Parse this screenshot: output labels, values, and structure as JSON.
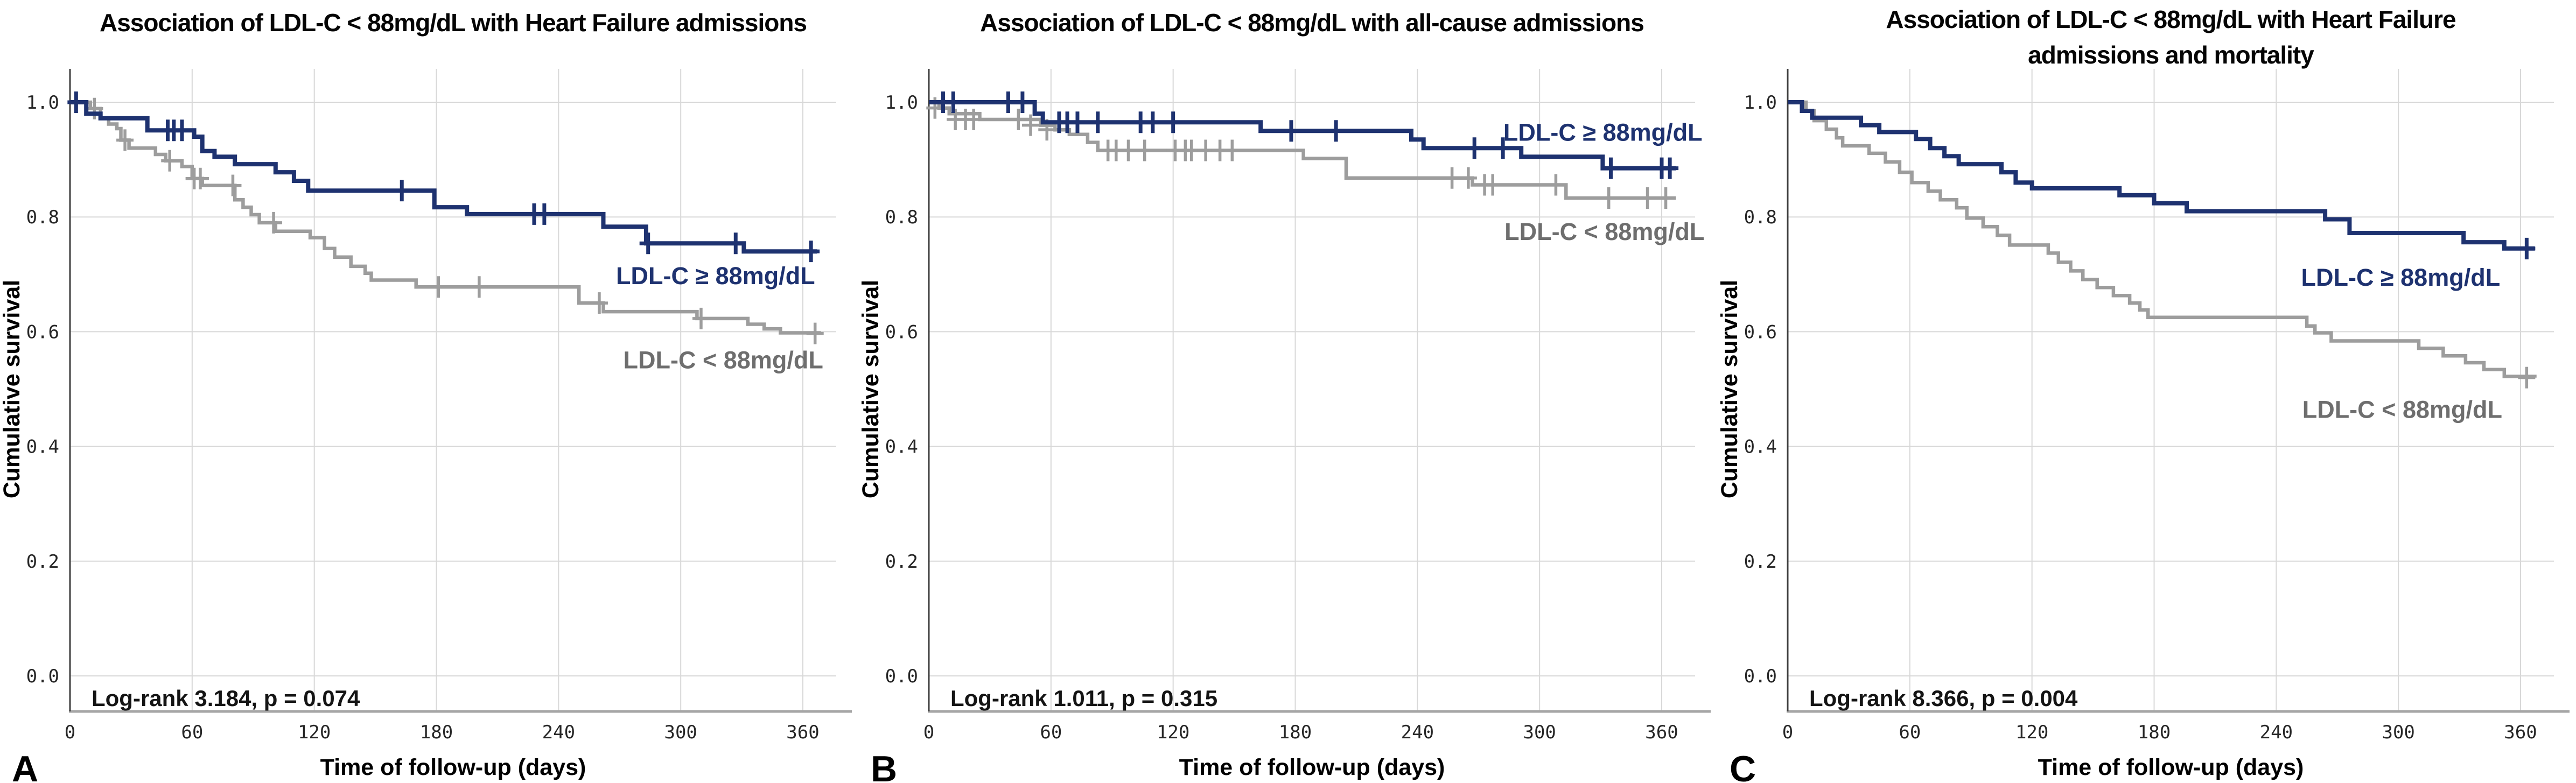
{
  "figure": {
    "background": "#ffffff",
    "shared_y_axis_label": "Cumulative survival",
    "shared_x_axis_label": "Time of follow-up (days)",
    "panel_letters": [
      "A",
      "B",
      "C"
    ],
    "colors": {
      "ldl_high_curve": "#1e3270",
      "ldl_low_curve": "#9d9d9d",
      "ldl_low_label": "#6e6e6e",
      "gridline": "#d8d8d8",
      "y_axis_line": "#3f3f3f",
      "x_axis_line": "#a6a6a6"
    }
  },
  "chart_data": [
    {
      "type": "line",
      "km_step": true,
      "panel_label": "A",
      "title": "Association of LDL-C < 88mg/dL with Heart Failure admissions",
      "title_lines": [
        "Association of LDL-C < 88mg/dL with Heart Failure admissions"
      ],
      "xlabel": "Time of follow-up (days)",
      "ylabel": "Cumulative survival",
      "annotation": "Log-rank 3.184, p = 0.074",
      "x_ticks": [
        0,
        60,
        120,
        180,
        240,
        300,
        360
      ],
      "y_ticks": [
        1.0,
        0.8,
        0.6,
        0.4,
        0.2,
        0.0
      ],
      "xlim": [
        0,
        375
      ],
      "ylim": [
        0.0,
        1.0
      ],
      "grid": true,
      "legend_position": "inline-right",
      "series": [
        {
          "name": "LDL-C ≥ 88mg/dL",
          "color": "#1e3270",
          "label_color": "#1e3270",
          "stroke_width": 8,
          "points": [
            [
              0,
              1.0
            ],
            [
              8,
              0.98
            ],
            [
              15,
              0.972
            ],
            [
              38,
              0.951
            ],
            [
              61,
              0.94
            ],
            [
              65,
              0.915
            ],
            [
              71,
              0.905
            ],
            [
              81,
              0.892
            ],
            [
              101,
              0.878
            ],
            [
              110,
              0.863
            ],
            [
              117,
              0.846
            ],
            [
              179,
              0.817
            ],
            [
              195,
              0.805
            ],
            [
              262,
              0.783
            ],
            [
              283,
              0.754
            ],
            [
              331,
              0.74
            ],
            [
              367,
              0.74
            ]
          ],
          "censors": [
            [
              3,
              1.0
            ],
            [
              48,
              0.951
            ],
            [
              51,
              0.951
            ],
            [
              55,
              0.951
            ],
            [
              163,
              0.846
            ],
            [
              228,
              0.805
            ],
            [
              233,
              0.805
            ],
            [
              284,
              0.754
            ],
            [
              327,
              0.754
            ],
            [
              364,
              0.74
            ]
          ],
          "label": {
            "x": 366,
            "y": 0.698,
            "anchor": "end"
          }
        },
        {
          "name": "LDL-C < 88mg/dL",
          "color": "#9d9d9d",
          "label_color": "#6e6e6e",
          "stroke_width": 6.5,
          "points": [
            [
              0,
              1.0
            ],
            [
              10,
              0.989
            ],
            [
              15,
              0.972
            ],
            [
              19,
              0.962
            ],
            [
              23,
              0.954
            ],
            [
              25,
              0.934
            ],
            [
              29,
              0.92
            ],
            [
              42,
              0.909
            ],
            [
              47,
              0.898
            ],
            [
              55,
              0.888
            ],
            [
              60,
              0.867
            ],
            [
              65,
              0.855
            ],
            [
              81,
              0.83
            ],
            [
              85,
              0.817
            ],
            [
              89,
              0.804
            ],
            [
              93,
              0.79
            ],
            [
              101,
              0.775
            ],
            [
              118,
              0.764
            ],
            [
              125,
              0.745
            ],
            [
              130,
              0.73
            ],
            [
              138,
              0.714
            ],
            [
              145,
              0.702
            ],
            [
              148,
              0.69
            ],
            [
              170,
              0.678
            ],
            [
              250,
              0.65
            ],
            [
              262,
              0.635
            ],
            [
              308,
              0.623
            ],
            [
              333,
              0.613
            ],
            [
              341,
              0.605
            ],
            [
              349,
              0.598
            ],
            [
              368,
              0.597
            ]
          ],
          "censors": [
            [
              12,
              0.989
            ],
            [
              27,
              0.934
            ],
            [
              49,
              0.898
            ],
            [
              61,
              0.867
            ],
            [
              64,
              0.867
            ],
            [
              80,
              0.855
            ],
            [
              100,
              0.79
            ],
            [
              181,
              0.678
            ],
            [
              201,
              0.678
            ],
            [
              260,
              0.65
            ],
            [
              310,
              0.623
            ],
            [
              366,
              0.597
            ]
          ],
          "label": {
            "x": 370,
            "y": 0.551,
            "anchor": "end"
          }
        }
      ]
    },
    {
      "type": "line",
      "km_step": true,
      "panel_label": "B",
      "title": "Association of LDL-C < 88mg/dL with all-cause admissions",
      "title_lines": [
        "Association of LDL-C < 88mg/dL with all-cause admissions"
      ],
      "xlabel": "Time of follow-up (days)",
      "ylabel": "Cumulative survival",
      "annotation": "Log-rank 1.011, p = 0.315",
      "x_ticks": [
        0,
        60,
        120,
        180,
        240,
        300,
        360
      ],
      "y_ticks": [
        1.0,
        0.8,
        0.6,
        0.4,
        0.2,
        0.0
      ],
      "xlim": [
        0,
        375
      ],
      "ylim": [
        0.0,
        1.0
      ],
      "grid": true,
      "legend_position": "inline-right",
      "series": [
        {
          "name": "LDL-C ≥ 88mg/dL",
          "color": "#1e3270",
          "label_color": "#1e3270",
          "stroke_width": 8,
          "points": [
            [
              0,
              1.0
            ],
            [
              52,
              0.98
            ],
            [
              56,
              0.965
            ],
            [
              163,
              0.95
            ],
            [
              237,
              0.935
            ],
            [
              243,
              0.92
            ],
            [
              291,
              0.905
            ],
            [
              331,
              0.885
            ],
            [
              367,
              0.885
            ]
          ],
          "censors": [
            [
              7,
              1.0
            ],
            [
              12,
              1.0
            ],
            [
              39,
              1.0
            ],
            [
              46,
              1.0
            ],
            [
              64,
              0.965
            ],
            [
              68,
              0.965
            ],
            [
              73,
              0.965
            ],
            [
              83,
              0.965
            ],
            [
              104,
              0.965
            ],
            [
              110,
              0.965
            ],
            [
              120,
              0.965
            ],
            [
              178,
              0.95
            ],
            [
              200,
              0.95
            ],
            [
              268,
              0.92
            ],
            [
              282,
              0.92
            ],
            [
              335,
              0.885
            ],
            [
              360,
              0.885
            ],
            [
              364,
              0.885
            ]
          ],
          "label": {
            "x": 380,
            "y": 0.948,
            "anchor": "end"
          }
        },
        {
          "name": "LDL-C < 88mg/dL",
          "color": "#9d9d9d",
          "label_color": "#6e6e6e",
          "stroke_width": 6.5,
          "points": [
            [
              0,
              1.0
            ],
            [
              5,
              0.99
            ],
            [
              10,
              0.98
            ],
            [
              25,
              0.97
            ],
            [
              55,
              0.96
            ],
            [
              62,
              0.952
            ],
            [
              69,
              0.944
            ],
            [
              78,
              0.93
            ],
            [
              83,
              0.916
            ],
            [
              184,
              0.902
            ],
            [
              205,
              0.868
            ],
            [
              267,
              0.856
            ],
            [
              313,
              0.833
            ],
            [
              367,
              0.833
            ]
          ],
          "censors": [
            [
              3,
              0.99
            ],
            [
              13,
              0.97
            ],
            [
              18,
              0.97
            ],
            [
              22,
              0.97
            ],
            [
              44,
              0.97
            ],
            [
              50,
              0.96
            ],
            [
              58,
              0.952
            ],
            [
              88,
              0.916
            ],
            [
              92,
              0.916
            ],
            [
              98,
              0.916
            ],
            [
              106,
              0.916
            ],
            [
              121,
              0.916
            ],
            [
              126,
              0.916
            ],
            [
              129,
              0.916
            ],
            [
              136,
              0.916
            ],
            [
              143,
              0.916
            ],
            [
              149,
              0.916
            ],
            [
              257,
              0.868
            ],
            [
              265,
              0.868
            ],
            [
              273,
              0.856
            ],
            [
              277,
              0.856
            ],
            [
              308,
              0.856
            ],
            [
              334,
              0.833
            ],
            [
              353,
              0.833
            ],
            [
              362,
              0.833
            ]
          ],
          "label": {
            "x": 381,
            "y": 0.775,
            "anchor": "end"
          }
        }
      ]
    },
    {
      "type": "line",
      "km_step": true,
      "panel_label": "C",
      "title": "Association of LDL-C < 88mg/dL with Heart Failure admissions and mortality",
      "title_lines": [
        "Association of LDL-C < 88mg/dL with Heart Failure",
        "admissions and mortality"
      ],
      "xlabel": "Time of follow-up (days)",
      "ylabel": "Cumulative survival",
      "annotation": "Log-rank 8.366, p = 0.004",
      "x_ticks": [
        0,
        60,
        120,
        180,
        240,
        300,
        360
      ],
      "y_ticks": [
        1.0,
        0.8,
        0.6,
        0.4,
        0.2,
        0.0
      ],
      "xlim": [
        0,
        375
      ],
      "ylim": [
        0.0,
        1.0
      ],
      "grid": true,
      "legend_position": "inline-right",
      "series": [
        {
          "name": "LDL-C ≥ 88mg/dL",
          "color": "#1e3270",
          "label_color": "#1e3270",
          "stroke_width": 8,
          "points": [
            [
              0,
              1.0
            ],
            [
              7,
              0.985
            ],
            [
              12,
              0.973
            ],
            [
              36,
              0.96
            ],
            [
              45,
              0.948
            ],
            [
              63,
              0.936
            ],
            [
              70,
              0.92
            ],
            [
              77,
              0.906
            ],
            [
              84,
              0.892
            ],
            [
              105,
              0.878
            ],
            [
              112,
              0.86
            ],
            [
              120,
              0.85
            ],
            [
              163,
              0.838
            ],
            [
              180,
              0.824
            ],
            [
              196,
              0.81
            ],
            [
              264,
              0.796
            ],
            [
              276,
              0.772
            ],
            [
              332,
              0.756
            ],
            [
              352,
              0.745
            ],
            [
              367,
              0.745
            ]
          ],
          "censors": [
            [
              363,
              0.745
            ]
          ],
          "label": {
            "x": 350,
            "y": 0.695,
            "anchor": "end"
          }
        },
        {
          "name": "LDL-C < 88mg/dL",
          "color": "#9d9d9d",
          "label_color": "#6e6e6e",
          "stroke_width": 6.5,
          "points": [
            [
              0,
              1.0
            ],
            [
              9,
              0.985
            ],
            [
              13,
              0.968
            ],
            [
              19,
              0.953
            ],
            [
              24,
              0.938
            ],
            [
              27,
              0.924
            ],
            [
              40,
              0.911
            ],
            [
              48,
              0.896
            ],
            [
              55,
              0.878
            ],
            [
              61,
              0.86
            ],
            [
              69,
              0.845
            ],
            [
              75,
              0.83
            ],
            [
              83,
              0.816
            ],
            [
              88,
              0.798
            ],
            [
              96,
              0.783
            ],
            [
              103,
              0.768
            ],
            [
              109,
              0.751
            ],
            [
              128,
              0.737
            ],
            [
              133,
              0.721
            ],
            [
              139,
              0.706
            ],
            [
              145,
              0.691
            ],
            [
              152,
              0.677
            ],
            [
              160,
              0.663
            ],
            [
              168,
              0.65
            ],
            [
              173,
              0.638
            ],
            [
              177,
              0.625
            ],
            [
              255,
              0.61
            ],
            [
              259,
              0.598
            ],
            [
              267,
              0.584
            ],
            [
              310,
              0.571
            ],
            [
              322,
              0.558
            ],
            [
              333,
              0.546
            ],
            [
              342,
              0.534
            ],
            [
              352,
              0.522
            ],
            [
              367,
              0.52
            ]
          ],
          "censors": [
            [
              363,
              0.52
            ]
          ],
          "label": {
            "x": 351,
            "y": 0.465,
            "anchor": "end"
          }
        }
      ]
    }
  ]
}
